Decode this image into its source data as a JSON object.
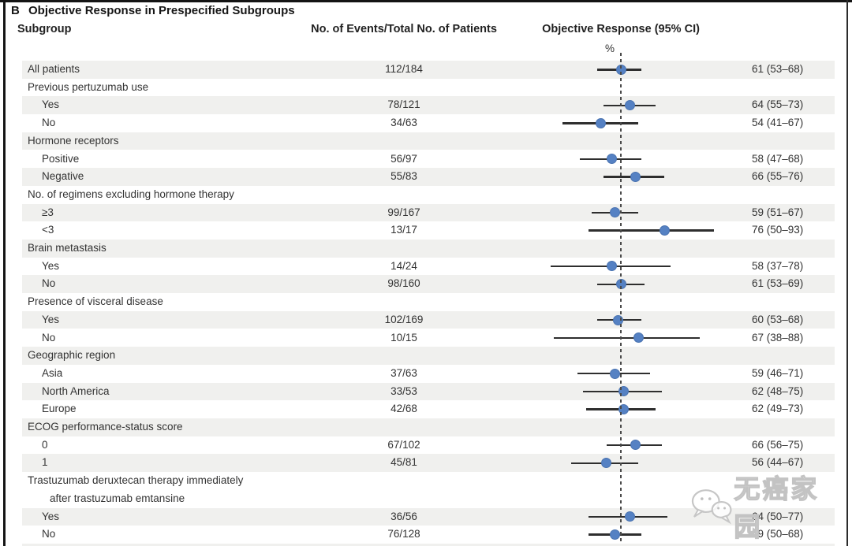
{
  "title": {
    "panel_letter": "B",
    "text": "Objective Response in Prespecified Subgroups"
  },
  "columns": {
    "subgroup": "Subgroup",
    "events": "No. of Events/Total No. of Patients",
    "response": "Objective Response (95% CI)",
    "unit": "%"
  },
  "watermark": {
    "text": "无癌家园",
    "icon": "wechat-bubbles-icon"
  },
  "colors": {
    "row_shade": "#f0f0ee",
    "dot_blue": "#5581c3",
    "ci_line": "#2e2e2e",
    "reference_line": "#4a4a4a",
    "border": "#141414"
  },
  "chart_data": {
    "type": "forest",
    "title": "Objective Response in Prespecified Subgroups",
    "unit": "%",
    "reference_line_pct": 61,
    "x_visible_range": [
      35,
      97
    ],
    "rows": [
      {
        "label": "All patients",
        "indent": 0,
        "events": "112/184",
        "value": 61,
        "lo": 53,
        "hi": 68,
        "ci": "61 (53–68)",
        "shaded": true
      },
      {
        "label": "Previous pertuzumab use",
        "indent": 0,
        "header": true,
        "shaded": false
      },
      {
        "label": "Yes",
        "indent": 1,
        "events": "78/121",
        "value": 64,
        "lo": 55,
        "hi": 73,
        "ci": "64 (55–73)",
        "shaded": true
      },
      {
        "label": "No",
        "indent": 1,
        "events": "34/63",
        "value": 54,
        "lo": 41,
        "hi": 67,
        "ci": "54 (41–67)",
        "shaded": false
      },
      {
        "label": "Hormone receptors",
        "indent": 0,
        "header": true,
        "shaded": true
      },
      {
        "label": "Positive",
        "indent": 1,
        "events": "56/97",
        "value": 58,
        "lo": 47,
        "hi": 68,
        "ci": "58 (47–68)",
        "shaded": false
      },
      {
        "label": "Negative",
        "indent": 1,
        "events": "55/83",
        "value": 66,
        "lo": 55,
        "hi": 76,
        "ci": "66 (55–76)",
        "shaded": true
      },
      {
        "label": "No. of regimens excluding hormone therapy",
        "indent": 0,
        "header": true,
        "shaded": false
      },
      {
        "label": "≥3",
        "indent": 1,
        "events": "99/167",
        "value": 59,
        "lo": 51,
        "hi": 67,
        "ci": "59 (51–67)",
        "shaded": true
      },
      {
        "label": "<3",
        "indent": 1,
        "events": "13/17",
        "value": 76,
        "lo": 50,
        "hi": 93,
        "ci": "76 (50–93)",
        "shaded": false
      },
      {
        "label": "Brain metastasis",
        "indent": 0,
        "header": true,
        "shaded": true
      },
      {
        "label": "Yes",
        "indent": 1,
        "events": "14/24",
        "value": 58,
        "lo": 37,
        "hi": 78,
        "ci": "58 (37–78)",
        "shaded": false
      },
      {
        "label": "No",
        "indent": 1,
        "events": "98/160",
        "value": 61,
        "lo": 53,
        "hi": 69,
        "ci": "61 (53–69)",
        "shaded": true
      },
      {
        "label": "Presence of visceral disease",
        "indent": 0,
        "header": true,
        "shaded": false
      },
      {
        "label": "Yes",
        "indent": 1,
        "events": "102/169",
        "value": 60,
        "lo": 53,
        "hi": 68,
        "ci": "60 (53–68)",
        "shaded": true
      },
      {
        "label": "No",
        "indent": 1,
        "events": "10/15",
        "value": 67,
        "lo": 38,
        "hi": 88,
        "ci": "67 (38–88)",
        "shaded": false
      },
      {
        "label": "Geographic region",
        "indent": 0,
        "header": true,
        "shaded": true
      },
      {
        "label": "Asia",
        "indent": 1,
        "events": "37/63",
        "value": 59,
        "lo": 46,
        "hi": 71,
        "ci": "59 (46–71)",
        "shaded": false
      },
      {
        "label": "North America",
        "indent": 1,
        "events": "33/53",
        "value": 62,
        "lo": 48,
        "hi": 75,
        "ci": "62 (48–75)",
        "shaded": true
      },
      {
        "label": "Europe",
        "indent": 1,
        "events": "42/68",
        "value": 62,
        "lo": 49,
        "hi": 73,
        "ci": "62 (49–73)",
        "shaded": false
      },
      {
        "label": "ECOG performance-status score",
        "indent": 0,
        "header": true,
        "shaded": true
      },
      {
        "label": "0",
        "indent": 1,
        "events": "67/102",
        "value": 66,
        "lo": 56,
        "hi": 75,
        "ci": "66 (56–75)",
        "shaded": false
      },
      {
        "label": "1",
        "indent": 1,
        "events": "45/81",
        "value": 56,
        "lo": 44,
        "hi": 67,
        "ci": "56 (44–67)",
        "shaded": true
      },
      {
        "label": "Trastuzumab deruxtecan therapy immediately",
        "indent": 0,
        "header": true,
        "shaded": false
      },
      {
        "label": "after trastuzumab emtansine",
        "indent": 2,
        "header": true,
        "shaded": false
      },
      {
        "label": "Yes",
        "indent": 1,
        "events": "36/56",
        "value": 64,
        "lo": 50,
        "hi": 77,
        "ci": "64 (50–77)",
        "shaded": true
      },
      {
        "label": "No",
        "indent": 1,
        "events": "76/128",
        "value": 59,
        "lo": 50,
        "hi": 68,
        "ci": "59 (50–68)",
        "shaded": false
      }
    ]
  }
}
